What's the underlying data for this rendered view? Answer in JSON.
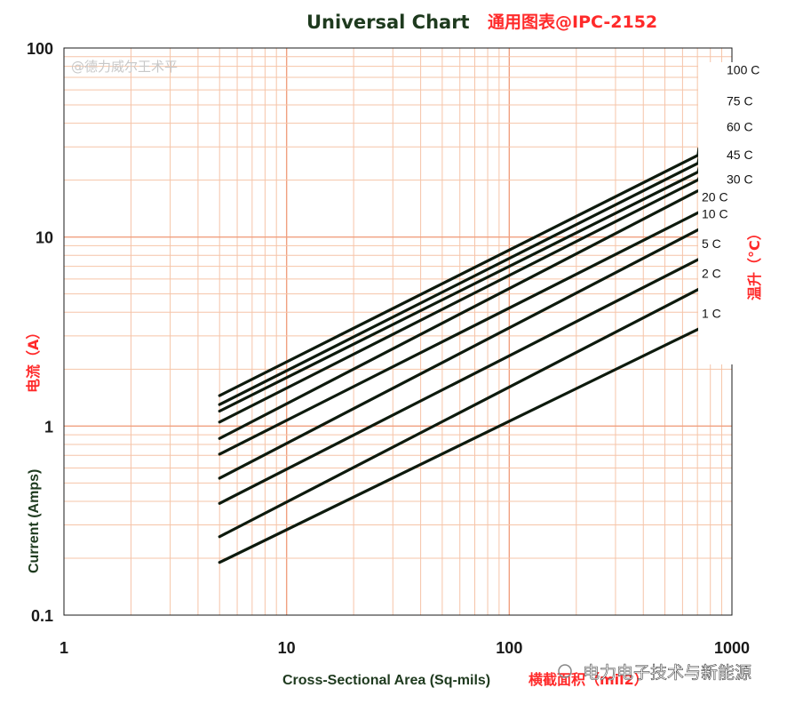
{
  "chart_data": {
    "type": "line",
    "title": "Universal Chart",
    "subtitle": "通用图表@IPC-2152",
    "xlabel": "Cross-Sectional Area (Sq-mils)",
    "xlabel_cn": "横截面积（mil2）",
    "ylabel": "Current (Amps)",
    "ylabel_cn": "电流（A）",
    "y2label_cn": "温升（°C）",
    "x_scale": "log",
    "y_scale": "log",
    "xlim": [
      1,
      1000
    ],
    "ylim": [
      0.1,
      100
    ],
    "x_ticks": [
      "1",
      "10",
      "100",
      "1000"
    ],
    "y_ticks": [
      "0.1",
      "1",
      "10",
      "100"
    ],
    "grid": true,
    "series_labels_position": "right",
    "series": [
      {
        "name": "100 C",
        "x": [
          5,
          700
        ],
        "y": [
          1.45,
          27
        ],
        "ext": [
          800,
          76
        ]
      },
      {
        "name": "75 C",
        "x": [
          5,
          700
        ],
        "y": [
          1.3,
          24.5
        ],
        "ext": [
          800,
          52
        ]
      },
      {
        "name": "60 C",
        "x": [
          5,
          700
        ],
        "y": [
          1.2,
          22
        ],
        "ext": [
          800,
          38
        ]
      },
      {
        "name": "45 C",
        "x": [
          5,
          700
        ],
        "y": [
          1.05,
          20
        ],
        "ext": [
          800,
          27
        ]
      },
      {
        "name": "30 C",
        "x": [
          5,
          700
        ],
        "y": [
          0.86,
          17.5
        ],
        "ext": [
          800,
          20
        ]
      },
      {
        "name": "20 C",
        "x": [
          5,
          800
        ],
        "y": [
          0.71,
          14.5
        ]
      },
      {
        "name": "10 C",
        "x": [
          5,
          800
        ],
        "y": [
          0.53,
          11.8
        ]
      },
      {
        "name": "5 C",
        "x": [
          5,
          800
        ],
        "y": [
          0.39,
          8.2
        ]
      },
      {
        "name": "2 C",
        "x": [
          5,
          800
        ],
        "y": [
          0.26,
          5.7
        ]
      },
      {
        "name": "1 C",
        "x": [
          5,
          800
        ],
        "y": [
          0.19,
          3.5
        ]
      }
    ],
    "colors": {
      "line": "#0d1a0d",
      "grid_major": "#f0a080",
      "grid_minor": "#f6c4a8",
      "accent": "#ff2a2a"
    }
  },
  "watermark": "@德力威尔王术平",
  "source_mark": "电力电子技术与新能源"
}
